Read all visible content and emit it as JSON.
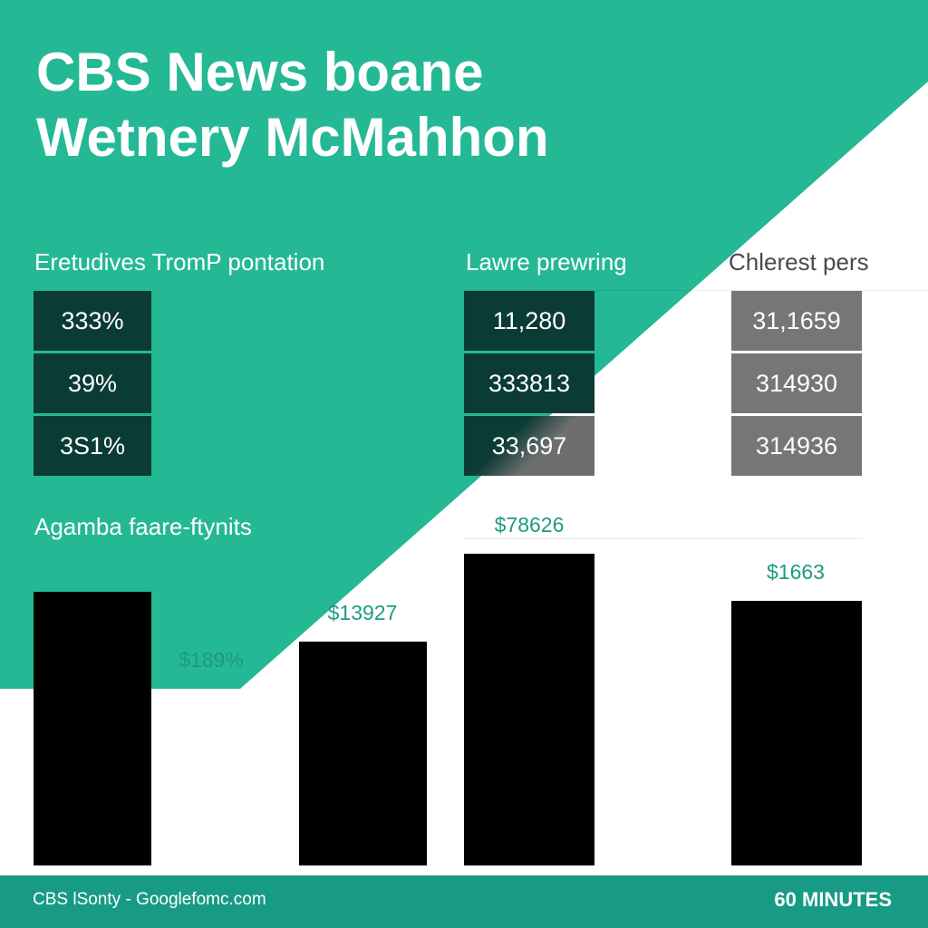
{
  "title_lines": [
    "CBS News boane",
    "Wetnery McMahhon"
  ],
  "colors": {
    "teal_background": "#24b895",
    "dark_cell": "#0b3b35",
    "gray_cell": "#767676",
    "bar": "#000000",
    "value_label": "#1f9a82",
    "footer": "#189b84"
  },
  "table": {
    "column_headers": [
      "Eretudives TromP pontation",
      "Lawre prewring",
      "Chlerest pers"
    ],
    "columns": [
      [
        "333%",
        "39%",
        "3S1%"
      ],
      [
        "11,280",
        "333813",
        "33,697"
      ],
      [
        "31,1659",
        "314930",
        "314936"
      ]
    ]
  },
  "section_label": "Agamba faare-ftynits",
  "chart_data": {
    "type": "bar",
    "title": "Agamba faare-ftynits",
    "bars": [
      {
        "label": "$189%",
        "value": 302
      },
      {
        "label": "$13927",
        "value": 247
      },
      {
        "label": "$78626",
        "value": 344
      },
      {
        "label": "$1663",
        "value": 292
      }
    ],
    "ylim": [
      0,
      344
    ],
    "grid": false,
    "legend": "none"
  },
  "footer": {
    "source": "CBS lSonty - Googlefomc.com",
    "brand": "60 MINUTES"
  }
}
